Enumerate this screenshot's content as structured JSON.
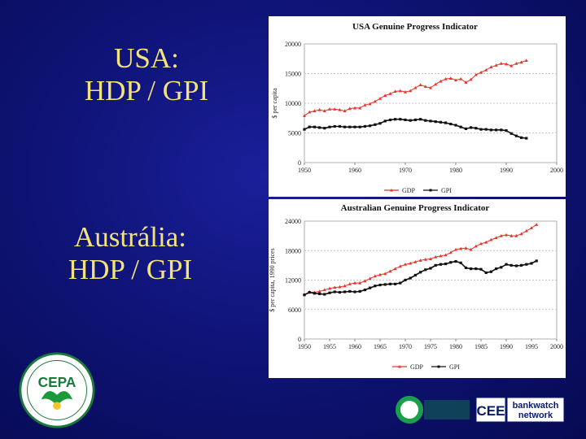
{
  "slide": {
    "usa_label_line1": "USA:",
    "usa_label_line2": "HDP / GPI",
    "aus_label_line1": "Austrália:",
    "aus_label_line2": "HDP / GPI",
    "label_color": "#f4e37a"
  },
  "logos": {
    "cepa_text": "CEPA",
    "bankwatch_cee": "CEE",
    "bankwatch_line1": "bankwatch",
    "bankwatch_line2": "network"
  },
  "chart_data": [
    {
      "type": "line",
      "title": "USA Genuine Progress Indicator",
      "ylabel": "$ per capita",
      "xlabel": "",
      "xlim": [
        1950,
        2000
      ],
      "ylim": [
        0,
        20000
      ],
      "xticks": [
        "1950",
        "1960",
        "1970",
        "1980",
        "1990",
        "2000"
      ],
      "yticks": [
        "0",
        "5000",
        "10000",
        "15000",
        "20000"
      ],
      "grid": true,
      "legend_position": "bottom",
      "series": [
        {
          "name": "GDP",
          "color": "#e8332a",
          "marker": "triangle",
          "x": [
            1950,
            1951,
            1952,
            1953,
            1954,
            1955,
            1956,
            1957,
            1958,
            1959,
            1960,
            1961,
            1962,
            1963,
            1964,
            1965,
            1966,
            1967,
            1968,
            1969,
            1970,
            1971,
            1972,
            1973,
            1974,
            1975,
            1976,
            1977,
            1978,
            1979,
            1980,
            1981,
            1982,
            1983,
            1984,
            1985,
            1986,
            1987,
            1988,
            1989,
            1990,
            1991,
            1992,
            1993,
            1994
          ],
          "y": [
            7900,
            8500,
            8700,
            8900,
            8700,
            9000,
            9000,
            8900,
            8700,
            9100,
            9200,
            9200,
            9700,
            9900,
            10300,
            10800,
            11300,
            11600,
            12000,
            12100,
            11900,
            12100,
            12600,
            13100,
            12800,
            12600,
            13200,
            13700,
            14100,
            14200,
            13900,
            14100,
            13500,
            14000,
            14800,
            15200,
            15600,
            16100,
            16400,
            16700,
            16600,
            16300,
            16700,
            16900,
            17200
          ]
        },
        {
          "name": "GPI",
          "color": "#111111",
          "marker": "square",
          "x": [
            1950,
            1951,
            1952,
            1953,
            1954,
            1955,
            1956,
            1957,
            1958,
            1959,
            1960,
            1961,
            1962,
            1963,
            1964,
            1965,
            1966,
            1967,
            1968,
            1969,
            1970,
            1971,
            1972,
            1973,
            1974,
            1975,
            1976,
            1977,
            1978,
            1979,
            1980,
            1981,
            1982,
            1983,
            1984,
            1985,
            1986,
            1987,
            1988,
            1989,
            1990,
            1991,
            1992,
            1993,
            1994
          ],
          "y": [
            5600,
            6000,
            6000,
            5900,
            5800,
            6000,
            6100,
            6100,
            6000,
            6000,
            6000,
            6000,
            6100,
            6200,
            6400,
            6600,
            7000,
            7200,
            7300,
            7300,
            7200,
            7100,
            7200,
            7300,
            7100,
            7000,
            6900,
            6800,
            6700,
            6500,
            6300,
            6000,
            5700,
            5900,
            5800,
            5600,
            5600,
            5500,
            5500,
            5500,
            5400,
            4900,
            4500,
            4200,
            4100
          ]
        }
      ]
    },
    {
      "type": "line",
      "title": "Australian Genuine Progress Indicator",
      "ylabel": "$ per capita, 1990 prices",
      "xlabel": "",
      "xlim": [
        1950,
        2000
      ],
      "ylim": [
        0,
        24000
      ],
      "xticks": [
        "1950",
        "1955",
        "1960",
        "1965",
        "1970",
        "1975",
        "1980",
        "1985",
        "1990",
        "1995",
        "2000"
      ],
      "yticks": [
        "0",
        "6000",
        "12000",
        "18000",
        "24000"
      ],
      "grid": true,
      "legend_position": "bottom",
      "series": [
        {
          "name": "GDP",
          "color": "#e8332a",
          "marker": "triangle",
          "x": [
            1950,
            1951,
            1952,
            1953,
            1954,
            1955,
            1956,
            1957,
            1958,
            1959,
            1960,
            1961,
            1962,
            1963,
            1964,
            1965,
            1966,
            1967,
            1968,
            1969,
            1970,
            1971,
            1972,
            1973,
            1974,
            1975,
            1976,
            1977,
            1978,
            1979,
            1980,
            1981,
            1982,
            1983,
            1984,
            1985,
            1986,
            1987,
            1988,
            1989,
            1990,
            1991,
            1992,
            1993,
            1994,
            1995,
            1996
          ],
          "y": [
            9000,
            9600,
            9500,
            9700,
            10000,
            10300,
            10500,
            10600,
            10800,
            11200,
            11400,
            11400,
            11800,
            12300,
            12800,
            13100,
            13300,
            13800,
            14300,
            14800,
            15200,
            15400,
            15700,
            16000,
            16200,
            16300,
            16700,
            16900,
            17100,
            17600,
            18200,
            18400,
            18500,
            18200,
            18900,
            19400,
            19700,
            20200,
            20600,
            21000,
            21200,
            21000,
            21000,
            21400,
            22000,
            22600,
            23300
          ]
        },
        {
          "name": "GPI",
          "color": "#111111",
          "marker": "square",
          "x": [
            1950,
            1951,
            1952,
            1953,
            1954,
            1955,
            1956,
            1957,
            1958,
            1959,
            1960,
            1961,
            1962,
            1963,
            1964,
            1965,
            1966,
            1967,
            1968,
            1969,
            1970,
            1971,
            1972,
            1973,
            1974,
            1975,
            1976,
            1977,
            1978,
            1979,
            1980,
            1981,
            1982,
            1983,
            1984,
            1985,
            1986,
            1987,
            1988,
            1989,
            1990,
            1991,
            1992,
            1993,
            1994,
            1995,
            1996
          ],
          "y": [
            9000,
            9500,
            9300,
            9200,
            9100,
            9400,
            9600,
            9500,
            9600,
            9700,
            9600,
            9700,
            10000,
            10400,
            10800,
            11000,
            11100,
            11200,
            11200,
            11400,
            12000,
            12400,
            13000,
            13600,
            14100,
            14400,
            15000,
            15200,
            15300,
            15600,
            15800,
            15500,
            14500,
            14300,
            14300,
            14200,
            13500,
            13700,
            14300,
            14600,
            15200,
            15000,
            14900,
            15000,
            15200,
            15400,
            15900
          ]
        }
      ]
    }
  ]
}
